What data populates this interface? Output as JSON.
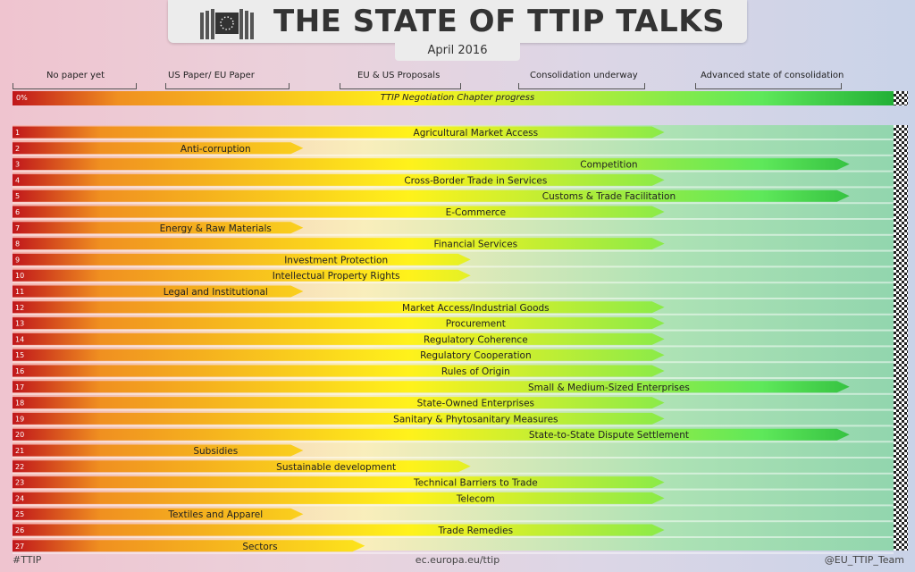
{
  "header": {
    "title": "THE STATE OF TTIP TALKS",
    "subtitle": "April 2016"
  },
  "stages": [
    "No paper yet",
    "US Paper/ EU Paper",
    "EU & US Proposals",
    "Consolidation underway",
    "Advanced state of consolidation"
  ],
  "progress": {
    "zero_label": "0%",
    "caption": "TTIP Negotiation Chapter progress"
  },
  "footer": {
    "left": "#TTIP",
    "center": "ec.europa.eu/ttip",
    "right": "@EU_TTIP_Team"
  },
  "colors": {
    "red": "#c0161b",
    "orange": "#f09020",
    "yellow": "#fff21b",
    "green": "#22b036",
    "title_text": "#333333"
  },
  "chart_data": {
    "type": "bar",
    "orientation": "horizontal",
    "scale": [
      "No paper yet",
      "US Paper/ EU Paper",
      "EU & US Proposals",
      "Consolidation underway",
      "Advanced state of consolidation"
    ],
    "categories": [
      "Agricultural Market Access",
      "Anti-corruption",
      "Competition",
      "Cross-Border Trade in Services",
      "Customs & Trade Facilitation",
      "E-Commerce",
      "Energy & Raw Materials",
      "Financial Services",
      "Investment Protection",
      "Intellectual Property Rights",
      "Legal and Institutional",
      "Market Access/Industrial Goods",
      "Procurement",
      "Regulatory Coherence",
      "Regulatory Cooperation",
      "Rules of Origin",
      "Small & Medium-Sized Enterprises",
      "State-Owned Enterprises",
      "Sanitary & Phytosanitary Measures",
      "State-to-State Dispute Settlement",
      "Subsidies",
      "Sustainable development",
      "Technical Barriers to Trade",
      "Telecom",
      "Textiles and Apparel",
      "Trade Remedies",
      "Sectors"
    ],
    "row_numbers": [
      "1",
      "2",
      "3",
      "4",
      "5",
      "6",
      "7",
      "8",
      "9",
      "10",
      "11",
      "12",
      "13",
      "14",
      "15",
      "16",
      "17",
      "18",
      "19",
      "20",
      "21",
      "22",
      "23",
      "24",
      "25",
      "26",
      "27"
    ],
    "values": [
      3.7,
      1.65,
      4.75,
      3.7,
      4.75,
      3.7,
      1.65,
      3.7,
      2.6,
      2.6,
      1.65,
      3.7,
      3.7,
      3.7,
      3.7,
      3.7,
      4.75,
      3.7,
      3.7,
      4.75,
      1.65,
      2.6,
      3.7,
      3.7,
      1.65,
      3.7,
      2.0
    ],
    "xlim": [
      0,
      5
    ],
    "title": "THE STATE OF TTIP TALKS",
    "subtitle": "April 2016",
    "legend": "none",
    "grid": false
  }
}
